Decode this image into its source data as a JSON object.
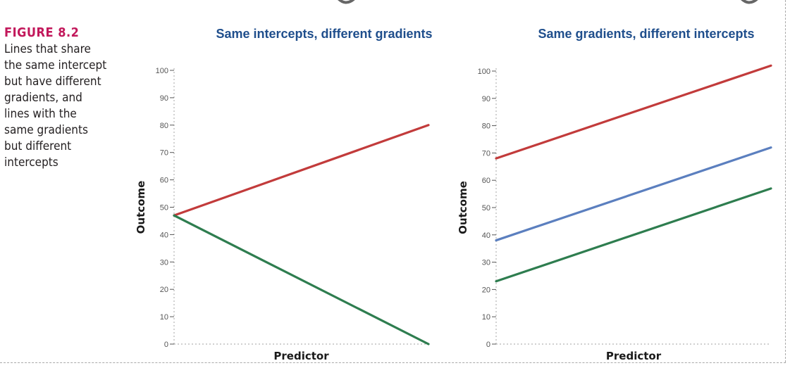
{
  "figure": {
    "label": "FIGURE 8.2",
    "caption": "Lines that share the same intercept but have different gradients, and lines with the same gradients but different intercepts"
  },
  "chart_data": [
    {
      "type": "line",
      "title": "Same intercepts, different gradients",
      "xlabel": "Predictor",
      "ylabel": "Outcome",
      "x": [
        0,
        1
      ],
      "xlim": [
        0,
        1
      ],
      "ylim": [
        0,
        100
      ],
      "yticks": [
        0,
        10,
        20,
        30,
        40,
        50,
        60,
        70,
        80,
        90,
        100
      ],
      "grid": false,
      "series": [
        {
          "color": "#c23b3b",
          "values": [
            47,
            80
          ]
        },
        {
          "color": "#2e7d4f",
          "values": [
            47,
            0
          ]
        }
      ]
    },
    {
      "type": "line",
      "title": "Same gradients, different intercepts",
      "xlabel": "Predictor",
      "ylabel": "Outcome",
      "x": [
        0,
        1
      ],
      "xlim": [
        0,
        1
      ],
      "ylim": [
        0,
        100
      ],
      "yticks": [
        0,
        10,
        20,
        30,
        40,
        50,
        60,
        70,
        80,
        90,
        100
      ],
      "grid": false,
      "series": [
        {
          "color": "#c23b3b",
          "values": [
            68,
            102
          ]
        },
        {
          "color": "#5b7fbf",
          "values": [
            38,
            72
          ]
        },
        {
          "color": "#2e7d4f",
          "values": [
            23,
            57
          ]
        }
      ]
    }
  ]
}
